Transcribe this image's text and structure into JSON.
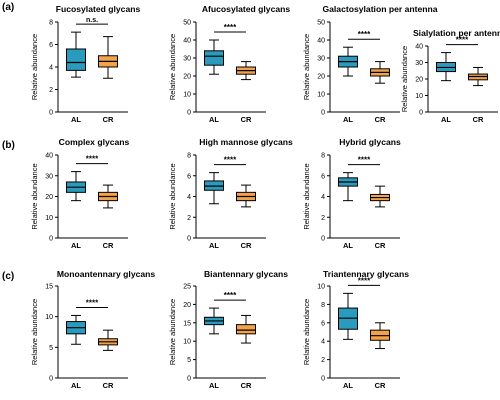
{
  "colors": {
    "AL": "#2a9bbd",
    "CR": "#f4a24a"
  },
  "chart_data": [
    {
      "type": "box",
      "title": "Fucosylated glycans",
      "ylabel": "Relative abundance",
      "categories": [
        "AL",
        "CR"
      ],
      "ylim": [
        0,
        8
      ],
      "yticks": [
        0,
        2,
        4,
        6,
        8
      ],
      "significance": "n.s.",
      "boxes": [
        {
          "name": "AL",
          "min": 3.1,
          "q1": 3.7,
          "median": 4.4,
          "q3": 5.6,
          "max": 7.1
        },
        {
          "name": "CR",
          "min": 3.0,
          "q1": 4.0,
          "median": 4.5,
          "q3": 5.0,
          "max": 6.7
        }
      ]
    },
    {
      "type": "box",
      "title": "Afucosylated glycans",
      "ylabel": "Relative abundance",
      "categories": [
        "AL",
        "CR"
      ],
      "ylim": [
        0,
        50
      ],
      "yticks": [
        0,
        10,
        20,
        30,
        40,
        50
      ],
      "significance": "****",
      "boxes": [
        {
          "name": "AL",
          "min": 21,
          "q1": 26,
          "median": 31,
          "q3": 34,
          "max": 40
        },
        {
          "name": "CR",
          "min": 18,
          "q1": 21,
          "median": 23,
          "q3": 25,
          "max": 28
        }
      ]
    },
    {
      "type": "box",
      "title": "Galactosylation per antenna",
      "ylabel": "Relative abundance",
      "categories": [
        "AL",
        "CR"
      ],
      "ylim": [
        0,
        50
      ],
      "yticks": [
        0,
        10,
        20,
        30,
        40,
        50
      ],
      "significance": "****",
      "boxes": [
        {
          "name": "AL",
          "min": 20,
          "q1": 25,
          "median": 28,
          "q3": 31,
          "max": 36
        },
        {
          "name": "CR",
          "min": 16,
          "q1": 20,
          "median": 22,
          "q3": 24,
          "max": 28
        }
      ]
    },
    {
      "type": "box",
      "title": "Sialylation per antenna",
      "ylabel": "Relative abundance",
      "categories": [
        "AL",
        "CR"
      ],
      "ylim": [
        0,
        40
      ],
      "yticks": [
        0,
        10,
        20,
        30,
        40
      ],
      "significance": "****",
      "boxes": [
        {
          "name": "AL",
          "min": 19,
          "q1": 24.5,
          "median": 27,
          "q3": 30,
          "max": 36
        },
        {
          "name": "CR",
          "min": 16,
          "q1": 19.5,
          "median": 21.5,
          "q3": 23,
          "max": 27
        }
      ]
    },
    {
      "type": "box",
      "title": "Complex glycans",
      "ylabel": "Relative abundance",
      "categories": [
        "AL",
        "CR"
      ],
      "ylim": [
        0,
        40
      ],
      "yticks": [
        0,
        10,
        20,
        30,
        40
      ],
      "significance": "****",
      "boxes": [
        {
          "name": "AL",
          "min": 18,
          "q1": 22,
          "median": 24.5,
          "q3": 27,
          "max": 32
        },
        {
          "name": "CR",
          "min": 14.5,
          "q1": 18,
          "median": 20,
          "q3": 22,
          "max": 25.5
        }
      ]
    },
    {
      "type": "box",
      "title": "High mannose glycans",
      "ylabel": "Relative abundance",
      "categories": [
        "AL",
        "CR"
      ],
      "ylim": [
        0,
        8
      ],
      "yticks": [
        0,
        2,
        4,
        6,
        8
      ],
      "significance": "****",
      "boxes": [
        {
          "name": "AL",
          "min": 3.3,
          "q1": 4.6,
          "median": 5.0,
          "q3": 5.5,
          "max": 6.3
        },
        {
          "name": "CR",
          "min": 3.0,
          "q1": 3.6,
          "median": 4.0,
          "q3": 4.4,
          "max": 5.1
        }
      ]
    },
    {
      "type": "box",
      "title": "Hybrid glycans",
      "ylabel": "Relative abundance",
      "categories": [
        "AL",
        "CR"
      ],
      "ylim": [
        0,
        8
      ],
      "yticks": [
        0,
        2,
        4,
        6,
        8
      ],
      "significance": "****",
      "boxes": [
        {
          "name": "AL",
          "min": 3.6,
          "q1": 5.0,
          "median": 5.4,
          "q3": 5.8,
          "max": 6.3
        },
        {
          "name": "CR",
          "min": 3.0,
          "q1": 3.6,
          "median": 3.9,
          "q3": 4.2,
          "max": 5.0
        }
      ]
    },
    {
      "type": "box",
      "title": "Monoantennary glycans",
      "ylabel": "Relative abundance",
      "categories": [
        "AL",
        "CR"
      ],
      "ylim": [
        0,
        15
      ],
      "yticks": [
        0,
        5,
        10,
        15
      ],
      "significance": "****",
      "boxes": [
        {
          "name": "AL",
          "min": 5.5,
          "q1": 7.2,
          "median": 8.2,
          "q3": 9.2,
          "max": 10.2
        },
        {
          "name": "CR",
          "min": 4.5,
          "q1": 5.4,
          "median": 5.9,
          "q3": 6.4,
          "max": 7.8
        }
      ]
    },
    {
      "type": "box",
      "title": "Biantennary glycans",
      "ylabel": "Relative abundance",
      "categories": [
        "AL",
        "CR"
      ],
      "ylim": [
        0,
        25
      ],
      "yticks": [
        0,
        5,
        10,
        15,
        20,
        25
      ],
      "significance": "****",
      "boxes": [
        {
          "name": "AL",
          "min": 12,
          "q1": 14.5,
          "median": 15.5,
          "q3": 16.5,
          "max": 19
        },
        {
          "name": "CR",
          "min": 9.5,
          "q1": 12,
          "median": 13,
          "q3": 14.5,
          "max": 17
        }
      ]
    },
    {
      "type": "box",
      "title": "Triantennary glycans",
      "ylabel": "Relative abundance",
      "categories": [
        "AL",
        "CR"
      ],
      "ylim": [
        0,
        10
      ],
      "yticks": [
        0,
        2,
        4,
        6,
        8,
        10
      ],
      "significance": "****",
      "boxes": [
        {
          "name": "AL",
          "min": 4.2,
          "q1": 5.3,
          "median": 6.5,
          "q3": 7.6,
          "max": 9.2
        },
        {
          "name": "CR",
          "min": 3.2,
          "q1": 4.1,
          "median": 4.6,
          "q3": 5.2,
          "max": 6.0
        }
      ]
    }
  ],
  "panel_labels": [
    "(a)",
    "(b)",
    "(c)"
  ]
}
